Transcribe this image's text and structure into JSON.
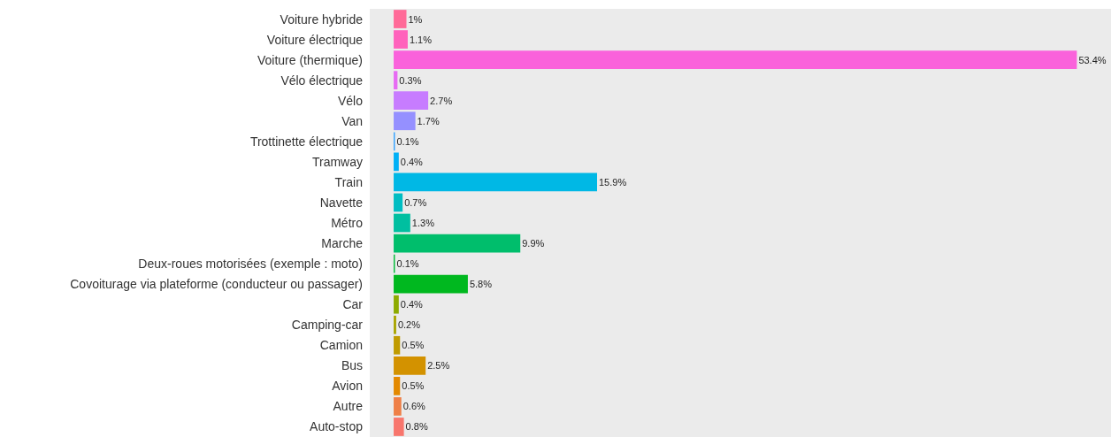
{
  "chart_data": {
    "type": "bar",
    "orientation": "horizontal",
    "categories": [
      "Voiture hybride",
      "Voiture électrique",
      "Voiture (thermique)",
      "Vélo électrique",
      "Vélo",
      "Van",
      "Trottinette électrique",
      "Tramway",
      "Train",
      "Navette",
      "Métro",
      "Marche",
      "Deux-roues motorisées (exemple : moto)",
      "Covoiturage via plateforme (conducteur ou passager)",
      "Car",
      "Camping-car",
      "Camion",
      "Bus",
      "Avion",
      "Autre",
      "Auto-stop"
    ],
    "values": [
      1,
      1.1,
      53.4,
      0.3,
      2.7,
      1.7,
      0.1,
      0.4,
      15.9,
      0.7,
      1.3,
      9.9,
      0.1,
      5.8,
      0.4,
      0.2,
      0.5,
      2.5,
      0.5,
      0.6,
      0.8
    ],
    "value_labels": [
      "1%",
      "1.1%",
      "53.4%",
      "0.3%",
      "2.7%",
      "1.7%",
      "0.1%",
      "0.4%",
      "15.9%",
      "0.7%",
      "1.3%",
      "9.9%",
      "0.1%",
      "5.8%",
      "0.4%",
      "0.2%",
      "0.5%",
      "2.5%",
      "0.5%",
      "0.6%",
      "0.8%"
    ],
    "colors": [
      "#FF6A98",
      "#FF62BC",
      "#FA62DB",
      "#E76BF3",
      "#C77CFF",
      "#9590FF",
      "#35A2FF",
      "#00B0F6",
      "#00B8E5",
      "#00BDC2",
      "#00BFA0",
      "#00BE6C",
      "#00BA38",
      "#00B81F",
      "#8DAB00",
      "#A9A400",
      "#C09B00",
      "#D39200",
      "#E38900",
      "#EF7F46",
      "#F8766D"
    ],
    "grid": false,
    "tick_labels": "y"
  }
}
